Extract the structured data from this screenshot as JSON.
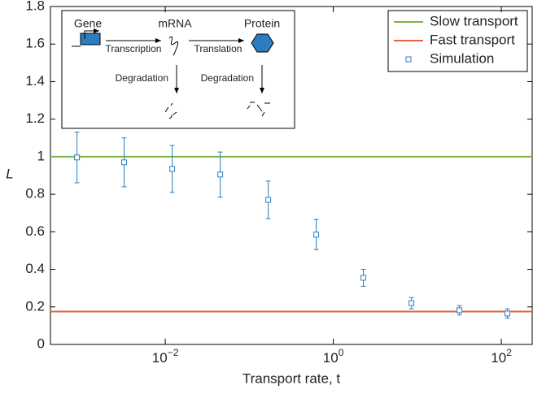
{
  "chart_data": {
    "type": "scatter",
    "x_label": "Transport rate, t",
    "y_label": "L",
    "x_scale": "log",
    "xlim": [
      0.00043,
      233
    ],
    "ylim": [
      0,
      1.8
    ],
    "xticks": [
      {
        "value": 0.01,
        "label": "10",
        "exponent": "−2"
      },
      {
        "value": 1,
        "label": "10",
        "exponent": "0"
      },
      {
        "value": 100,
        "label": "10",
        "exponent": "2"
      }
    ],
    "yticks": [
      0,
      0.2,
      0.4,
      0.6,
      0.8,
      1,
      1.2,
      1.4,
      1.6,
      1.8
    ],
    "legend": "upper right",
    "hlines": [
      {
        "name": "Slow transport",
        "color": "#7ab648",
        "value": 1
      },
      {
        "name": "Fast transport",
        "color": "#e8603c",
        "value": 0.175
      }
    ],
    "series": [
      {
        "name": "Simulation",
        "color": "#2a7dc1",
        "x": [
          0.00089,
          0.00324,
          0.0121,
          0.0451,
          0.168,
          0.626,
          2.28,
          8.51,
          31.7,
          118
        ],
        "values": [
          0.996,
          0.97,
          0.935,
          0.905,
          0.77,
          0.585,
          0.355,
          0.22,
          0.182,
          0.165
        ],
        "errors": [
          0.135,
          0.13,
          0.125,
          0.12,
          0.1,
          0.08,
          0.045,
          0.03,
          0.025,
          0.025
        ]
      }
    ],
    "inset": {
      "gene": "Gene",
      "mrna": "mRNA",
      "protein": "Protein",
      "transcription": "Transcription",
      "translation": "Translation",
      "degradation_mrna": "Degradation",
      "degradation_protein": "Degradation"
    }
  }
}
